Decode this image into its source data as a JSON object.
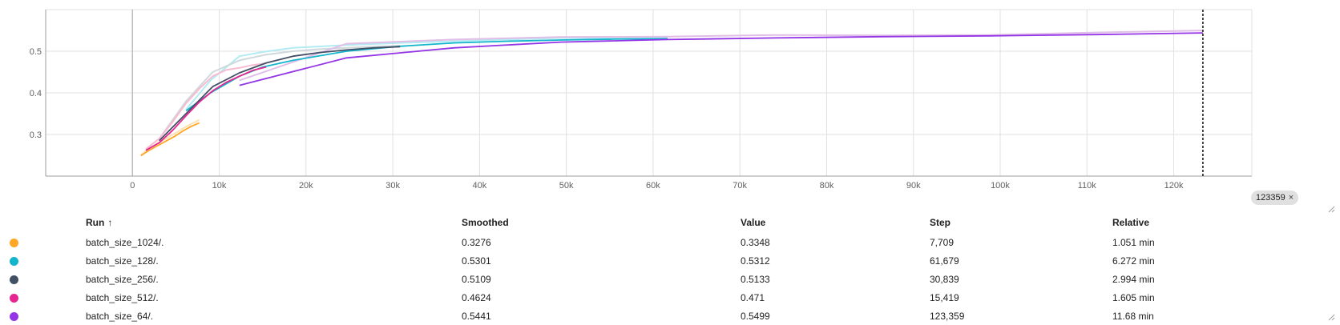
{
  "chart_data": {
    "type": "line",
    "title": "",
    "xlabel": "",
    "ylabel": "",
    "xlim": [
      -10000,
      129000
    ],
    "ylim": [
      0.2,
      0.6
    ],
    "x_ticks": [
      0,
      10000,
      20000,
      30000,
      40000,
      50000,
      60000,
      70000,
      80000,
      90000,
      100000,
      110000,
      120000
    ],
    "x_tick_labels": [
      "0",
      "10k",
      "20k",
      "30k",
      "40k",
      "50k",
      "60k",
      "70k",
      "80k",
      "90k",
      "100k",
      "110k",
      "120k"
    ],
    "y_ticks": [
      0.3,
      0.4,
      0.5
    ],
    "y_tick_labels": [
      "0.3",
      "0.4",
      "0.5"
    ],
    "grid": true,
    "crosshair_step": 123359,
    "series": [
      {
        "name": "batch_size_1024/.",
        "color": "#FFA726",
        "raw_color": "#FFE0B2",
        "x": [
          964,
          1928,
          2892,
          3856,
          4820,
          5784,
          6748,
          7709
        ],
        "smoothed": [
          0.249,
          0.262,
          0.273,
          0.284,
          0.295,
          0.308,
          0.319,
          0.3276
        ],
        "raw": [
          0.25,
          0.267,
          0.279,
          0.29,
          0.302,
          0.314,
          0.325,
          0.3348
        ]
      },
      {
        "name": "batch_size_128/.",
        "color": "#12B5CB",
        "raw_color": "#B2EBF2",
        "x": [
          6168,
          9000,
          12336,
          15000,
          18504,
          24672,
          30840,
          37008,
          43176,
          49344,
          55512,
          61679
        ],
        "smoothed": [
          0.357,
          0.4,
          0.44,
          0.462,
          0.478,
          0.5,
          0.512,
          0.52,
          0.524,
          0.527,
          0.529,
          0.5301
        ],
        "raw": [
          0.36,
          0.43,
          0.488,
          0.498,
          0.508,
          0.515,
          0.52,
          0.524,
          0.528,
          0.532,
          0.531,
          0.5312
        ]
      },
      {
        "name": "batch_size_256/.",
        "color": "#425066",
        "raw_color": "#CFD8DC",
        "x": [
          3084,
          6168,
          9252,
          12336,
          15420,
          18504,
          21588,
          24672,
          27756,
          30839
        ],
        "smoothed": [
          0.285,
          0.35,
          0.415,
          0.448,
          0.472,
          0.488,
          0.497,
          0.503,
          0.508,
          0.5109
        ],
        "raw": [
          0.29,
          0.38,
          0.45,
          0.478,
          0.492,
          0.5,
          0.505,
          0.508,
          0.511,
          0.5133
        ]
      },
      {
        "name": "batch_size_512/.",
        "color": "#E52592",
        "raw_color": "#F8BBD0",
        "x": [
          1542,
          3084,
          4626,
          6168,
          7710,
          9252,
          10794,
          12336,
          13878,
          15419
        ],
        "smoothed": [
          0.262,
          0.28,
          0.31,
          0.345,
          0.378,
          0.405,
          0.425,
          0.44,
          0.454,
          0.4624
        ],
        "raw": [
          0.265,
          0.29,
          0.33,
          0.375,
          0.41,
          0.44,
          0.455,
          0.46,
          0.467,
          0.471
        ]
      },
      {
        "name": "batch_size_64/.",
        "color": "#9334E6",
        "raw_color": "#E1BEE7",
        "x": [
          12336,
          24672,
          37008,
          49344,
          61680,
          74016,
          86352,
          98688,
          111024,
          123359
        ],
        "smoothed": [
          0.418,
          0.484,
          0.508,
          0.522,
          0.528,
          0.532,
          0.535,
          0.537,
          0.54,
          0.5441
        ],
        "raw": [
          0.43,
          0.518,
          0.528,
          0.534,
          0.535,
          0.539,
          0.538,
          0.539,
          0.545,
          0.5499
        ]
      }
    ]
  },
  "legend": {
    "headers": {
      "run": "Run",
      "sort_arrow": "↑",
      "smoothed": "Smoothed",
      "value": "Value",
      "step": "Step",
      "relative": "Relative"
    },
    "rows": [
      {
        "run": "batch_size_1024/.",
        "color": "#FFA726",
        "smoothed": "0.3276",
        "value": "0.3348",
        "step": "7,709",
        "relative": "1.051 min"
      },
      {
        "run": "batch_size_128/.",
        "color": "#12B5CB",
        "smoothed": "0.5301",
        "value": "0.5312",
        "step": "61,679",
        "relative": "6.272 min"
      },
      {
        "run": "batch_size_256/.",
        "color": "#425066",
        "smoothed": "0.5109",
        "value": "0.5133",
        "step": "30,839",
        "relative": "2.994 min"
      },
      {
        "run": "batch_size_512/.",
        "color": "#E52592",
        "smoothed": "0.4624",
        "value": "0.471",
        "step": "15,419",
        "relative": "1.605 min"
      },
      {
        "run": "batch_size_64/.",
        "color": "#9334E6",
        "smoothed": "0.5441",
        "value": "0.5499",
        "step": "123,359",
        "relative": "11.68 min"
      }
    ]
  },
  "crosshair_badge": {
    "value": "123359",
    "close_glyph": "×"
  },
  "icons": {
    "resize": "resize-corner-icon"
  }
}
